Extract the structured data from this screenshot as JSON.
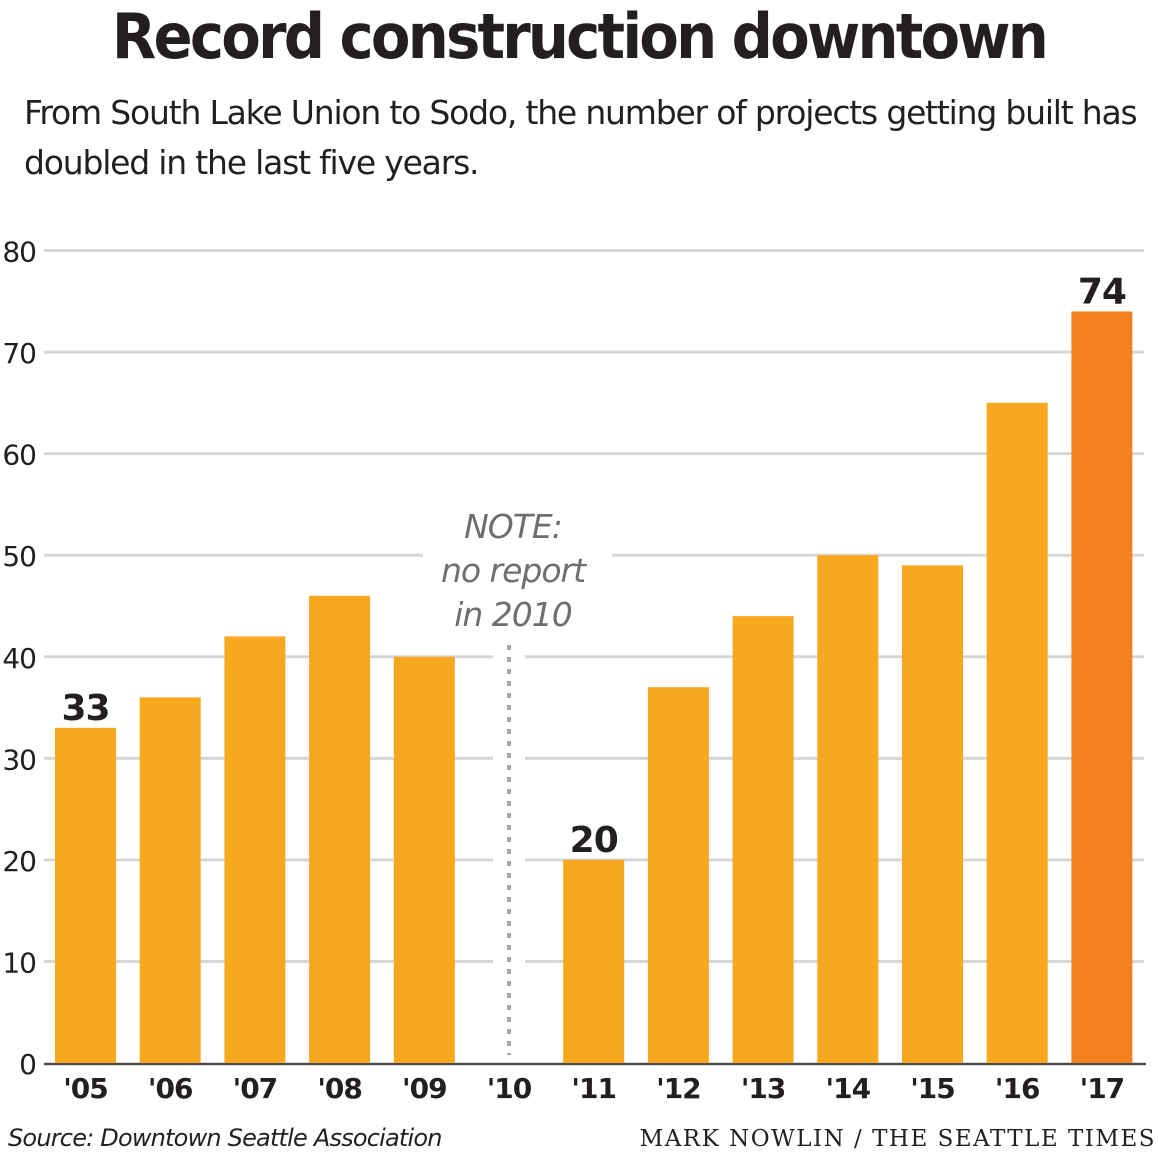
{
  "header": {
    "title": "Record construction downtown",
    "subtitle": "From South Lake Union to Sodo, the number of projects getting built has doubled in the last five years."
  },
  "footer": {
    "source": "Source: Downtown Seattle Association",
    "credit": "MARK NOWLIN / THE SEATTLE TIMES"
  },
  "colors": {
    "bar": "#F7A81E",
    "highlight_bar": "#F58220",
    "gridline": "#d6d6d6",
    "note_text": "#6d6e71",
    "text": "#231f20"
  },
  "chart_data": {
    "type": "bar",
    "title": "Record construction downtown",
    "subtitle": "From South Lake Union to Sodo, the number of projects getting built has doubled in the last five years.",
    "xlabel": "",
    "ylabel": "",
    "categories": [
      "'05",
      "'06",
      "'07",
      "'08",
      "'09",
      "'10",
      "'11",
      "'12",
      "'13",
      "'14",
      "'15",
      "'16",
      "'17"
    ],
    "values": [
      33,
      36,
      42,
      46,
      40,
      null,
      20,
      37,
      44,
      50,
      49,
      65,
      74
    ],
    "highlight": [
      "'17"
    ],
    "data_labels": [
      {
        "category": "'05",
        "label": "33"
      },
      {
        "category": "'11",
        "label": "20"
      },
      {
        "category": "'17",
        "label": "74"
      }
    ],
    "ylim": [
      0,
      80
    ],
    "yticks": [
      0,
      10,
      20,
      30,
      40,
      50,
      60,
      70,
      80
    ],
    "grid": true,
    "annotation": {
      "category": "'10",
      "lines": [
        "NOTE:",
        "no report",
        "in 2010"
      ]
    },
    "source": "Source: Downtown Seattle Association"
  }
}
